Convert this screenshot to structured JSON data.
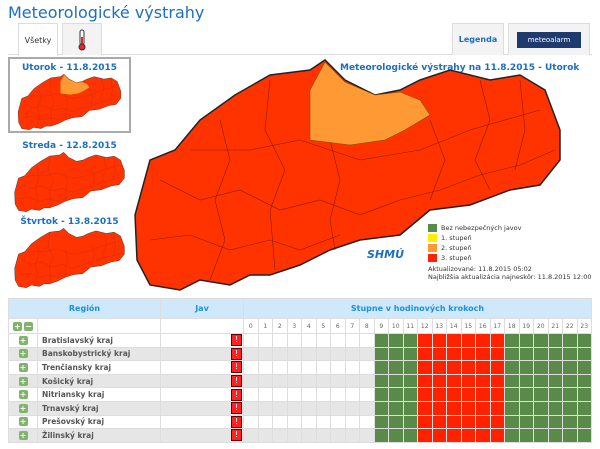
{
  "title": "Meteorologické výstrahy",
  "tabs": [
    {
      "label": "Všetky"
    },
    {
      "icon": "thermometer-icon"
    }
  ],
  "legend_button": "Legenda",
  "meteoalarm": "meteoalarm",
  "days": [
    {
      "label": "Utorok - 11.8.2015",
      "selected": true
    },
    {
      "label": "Streda - 12.8.2015"
    },
    {
      "label": "Štvrtok - 13.8.2015"
    }
  ],
  "map_title": "Meteorologické výstrahy na 11.8.2015 - Utorok",
  "legend": [
    {
      "label": "Bez nebezpečných javov",
      "color": "#5a8a4a"
    },
    {
      "label": "1. stupeň",
      "color": "#ffee00"
    },
    {
      "label": "2. stupeň",
      "color": "#ff9933"
    },
    {
      "label": "3. stupeň",
      "color": "#ff2200"
    }
  ],
  "logo": "SHMÚ",
  "updated": "Aktualizované: 11.8.2015 05:02",
  "next_update": "Najbližšia aktualizácia najneskôr: 11.8.2015 12:00",
  "table": {
    "headers": {
      "region": "Región",
      "jav": "Jav",
      "hours": "Stupne v hodinových krokoch"
    },
    "hours": [
      "0",
      "1",
      "2",
      "3",
      "4",
      "5",
      "6",
      "7",
      "8",
      "9",
      "10",
      "11",
      "12",
      "13",
      "14",
      "15",
      "16",
      "17",
      "18",
      "19",
      "20",
      "21",
      "22",
      "23"
    ],
    "jav_icon": "!",
    "rows": [
      {
        "name": "Bratislavský kraj",
        "levels": [
          null,
          null,
          null,
          null,
          null,
          null,
          null,
          null,
          null,
          0,
          0,
          0,
          3,
          3,
          3,
          3,
          3,
          3,
          0,
          0,
          0,
          0,
          0,
          0
        ]
      },
      {
        "name": "Banskobystrický kraj",
        "levels": [
          null,
          null,
          null,
          null,
          null,
          null,
          null,
          null,
          null,
          0,
          0,
          0,
          3,
          3,
          3,
          3,
          3,
          3,
          0,
          0,
          0,
          0,
          0,
          0
        ]
      },
      {
        "name": "Trenčiansky kraj",
        "levels": [
          null,
          null,
          null,
          null,
          null,
          null,
          null,
          null,
          null,
          0,
          0,
          0,
          3,
          3,
          3,
          3,
          3,
          3,
          0,
          0,
          0,
          0,
          0,
          0
        ]
      },
      {
        "name": "Košický kraj",
        "levels": [
          null,
          null,
          null,
          null,
          null,
          null,
          null,
          null,
          null,
          0,
          0,
          0,
          3,
          3,
          3,
          3,
          3,
          3,
          0,
          0,
          0,
          0,
          0,
          0
        ]
      },
      {
        "name": "Nitriansky kraj",
        "levels": [
          null,
          null,
          null,
          null,
          null,
          null,
          null,
          null,
          null,
          0,
          0,
          0,
          3,
          3,
          3,
          3,
          3,
          3,
          0,
          0,
          0,
          0,
          0,
          0
        ]
      },
      {
        "name": "Trnavský kraj",
        "levels": [
          null,
          null,
          null,
          null,
          null,
          null,
          null,
          null,
          null,
          0,
          0,
          0,
          3,
          3,
          3,
          3,
          3,
          3,
          0,
          0,
          0,
          0,
          0,
          0
        ]
      },
      {
        "name": "Prešovský kraj",
        "levels": [
          null,
          null,
          null,
          null,
          null,
          null,
          null,
          null,
          null,
          0,
          0,
          0,
          3,
          3,
          3,
          3,
          3,
          3,
          0,
          0,
          0,
          0,
          0,
          0
        ]
      },
      {
        "name": "Žilinský kraj",
        "levels": [
          null,
          null,
          null,
          null,
          null,
          null,
          null,
          null,
          null,
          0,
          0,
          0,
          3,
          3,
          3,
          3,
          3,
          3,
          0,
          0,
          0,
          0,
          0,
          0
        ]
      }
    ]
  }
}
